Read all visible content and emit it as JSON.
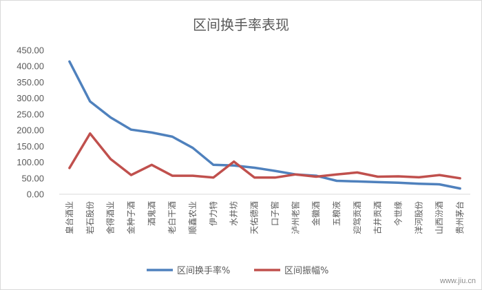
{
  "chart_data": {
    "type": "line",
    "title": "区间换手率表现",
    "categories": [
      "皇台酒业",
      "岩石股份",
      "舍得酒业",
      "金种子酒",
      "酒鬼酒",
      "老白干酒",
      "顺鑫农业",
      "伊力特",
      "水井坊",
      "天佑德酒",
      "口子窖",
      "泸州老窖",
      "金徽酒",
      "五粮液",
      "迎驾贡酒",
      "古井贡酒",
      "今世缘",
      "洋河股份",
      "山西汾酒",
      "贵州茅台"
    ],
    "series": [
      {
        "name": "区间换手率%",
        "color": "#4f81bd",
        "values": [
          415,
          290,
          240,
          202,
          193,
          180,
          145,
          92,
          90,
          83,
          73,
          62,
          58,
          42,
          40,
          38,
          36,
          33,
          31,
          18
        ]
      },
      {
        "name": "区间振幅%",
        "color": "#c0504d",
        "values": [
          82,
          190,
          110,
          60,
          92,
          58,
          58,
          52,
          102,
          52,
          52,
          62,
          55,
          62,
          68,
          55,
          56,
          53,
          60,
          50
        ]
      }
    ],
    "ylim": [
      0,
      450
    ],
    "yticks": [
      "0.00",
      "50.00",
      "100.00",
      "150.00",
      "200.00",
      "250.00",
      "300.00",
      "350.00",
      "400.00",
      "450.00"
    ],
    "grid": false,
    "legend_position": "bottom"
  },
  "watermark": "www.jiu.cn"
}
